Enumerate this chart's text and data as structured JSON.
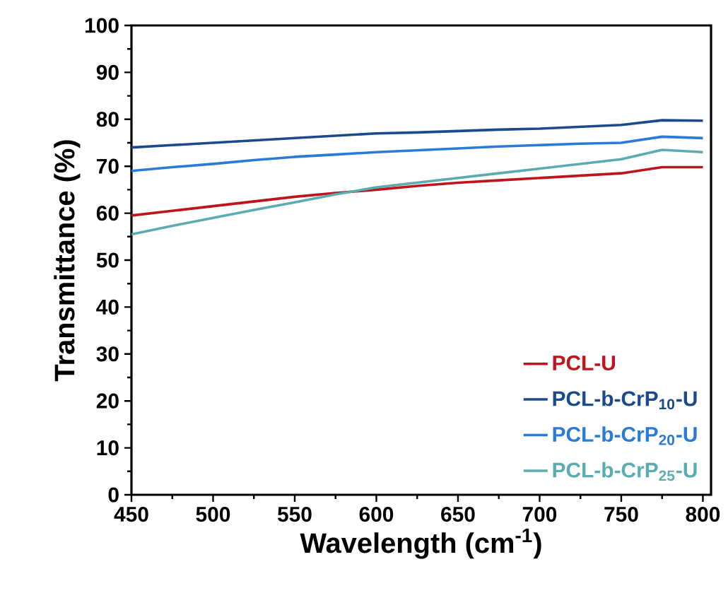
{
  "chart_data": {
    "type": "line",
    "xlabel": "Wavelength (cm$^{-1}$)",
    "ylabel": "Transmittance (%)",
    "x": [
      450,
      475,
      500,
      525,
      550,
      575,
      600,
      625,
      650,
      675,
      700,
      725,
      750,
      775,
      800
    ],
    "xlim": [
      450,
      805
    ],
    "xticks": [
      450,
      500,
      550,
      600,
      650,
      700,
      750,
      800
    ],
    "ylim": [
      0,
      100
    ],
    "yticks": [
      0,
      10,
      20,
      30,
      40,
      50,
      60,
      70,
      80,
      90,
      100
    ],
    "legend": "bottom right",
    "grid": false,
    "marker": "none",
    "line_style": "solid",
    "series": [
      {
        "name": "PCL-U",
        "color": "#c0141c",
        "values": [
          59.5,
          60.5,
          61.5,
          62.5,
          63.5,
          64.3,
          65,
          65.8,
          66.5,
          67,
          67.5,
          68,
          68.5,
          69.8,
          69.8
        ]
      },
      {
        "name": "PCL-b-CrP$_{10}$-U",
        "color": "#1a4a8c",
        "values": [
          74,
          74.5,
          75,
          75.5,
          76,
          76.5,
          77,
          77.2,
          77.5,
          77.8,
          78,
          78.4,
          78.8,
          79.8,
          79.7
        ]
      },
      {
        "name": "PCL-b-CrP$_{20}$-U",
        "color": "#2a7ad8",
        "values": [
          69,
          69.8,
          70.5,
          71.3,
          72,
          72.5,
          73,
          73.4,
          73.8,
          74.2,
          74.5,
          74.8,
          75,
          76.3,
          76
        ]
      },
      {
        "name": "PCL-b-CrP$_{25}$-U",
        "color": "#5aacb0",
        "values": [
          55.5,
          57.3,
          59,
          60.7,
          62.3,
          64,
          65.5,
          66.5,
          67.5,
          68.5,
          69.5,
          70.5,
          71.5,
          73.5,
          73
        ]
      }
    ]
  }
}
